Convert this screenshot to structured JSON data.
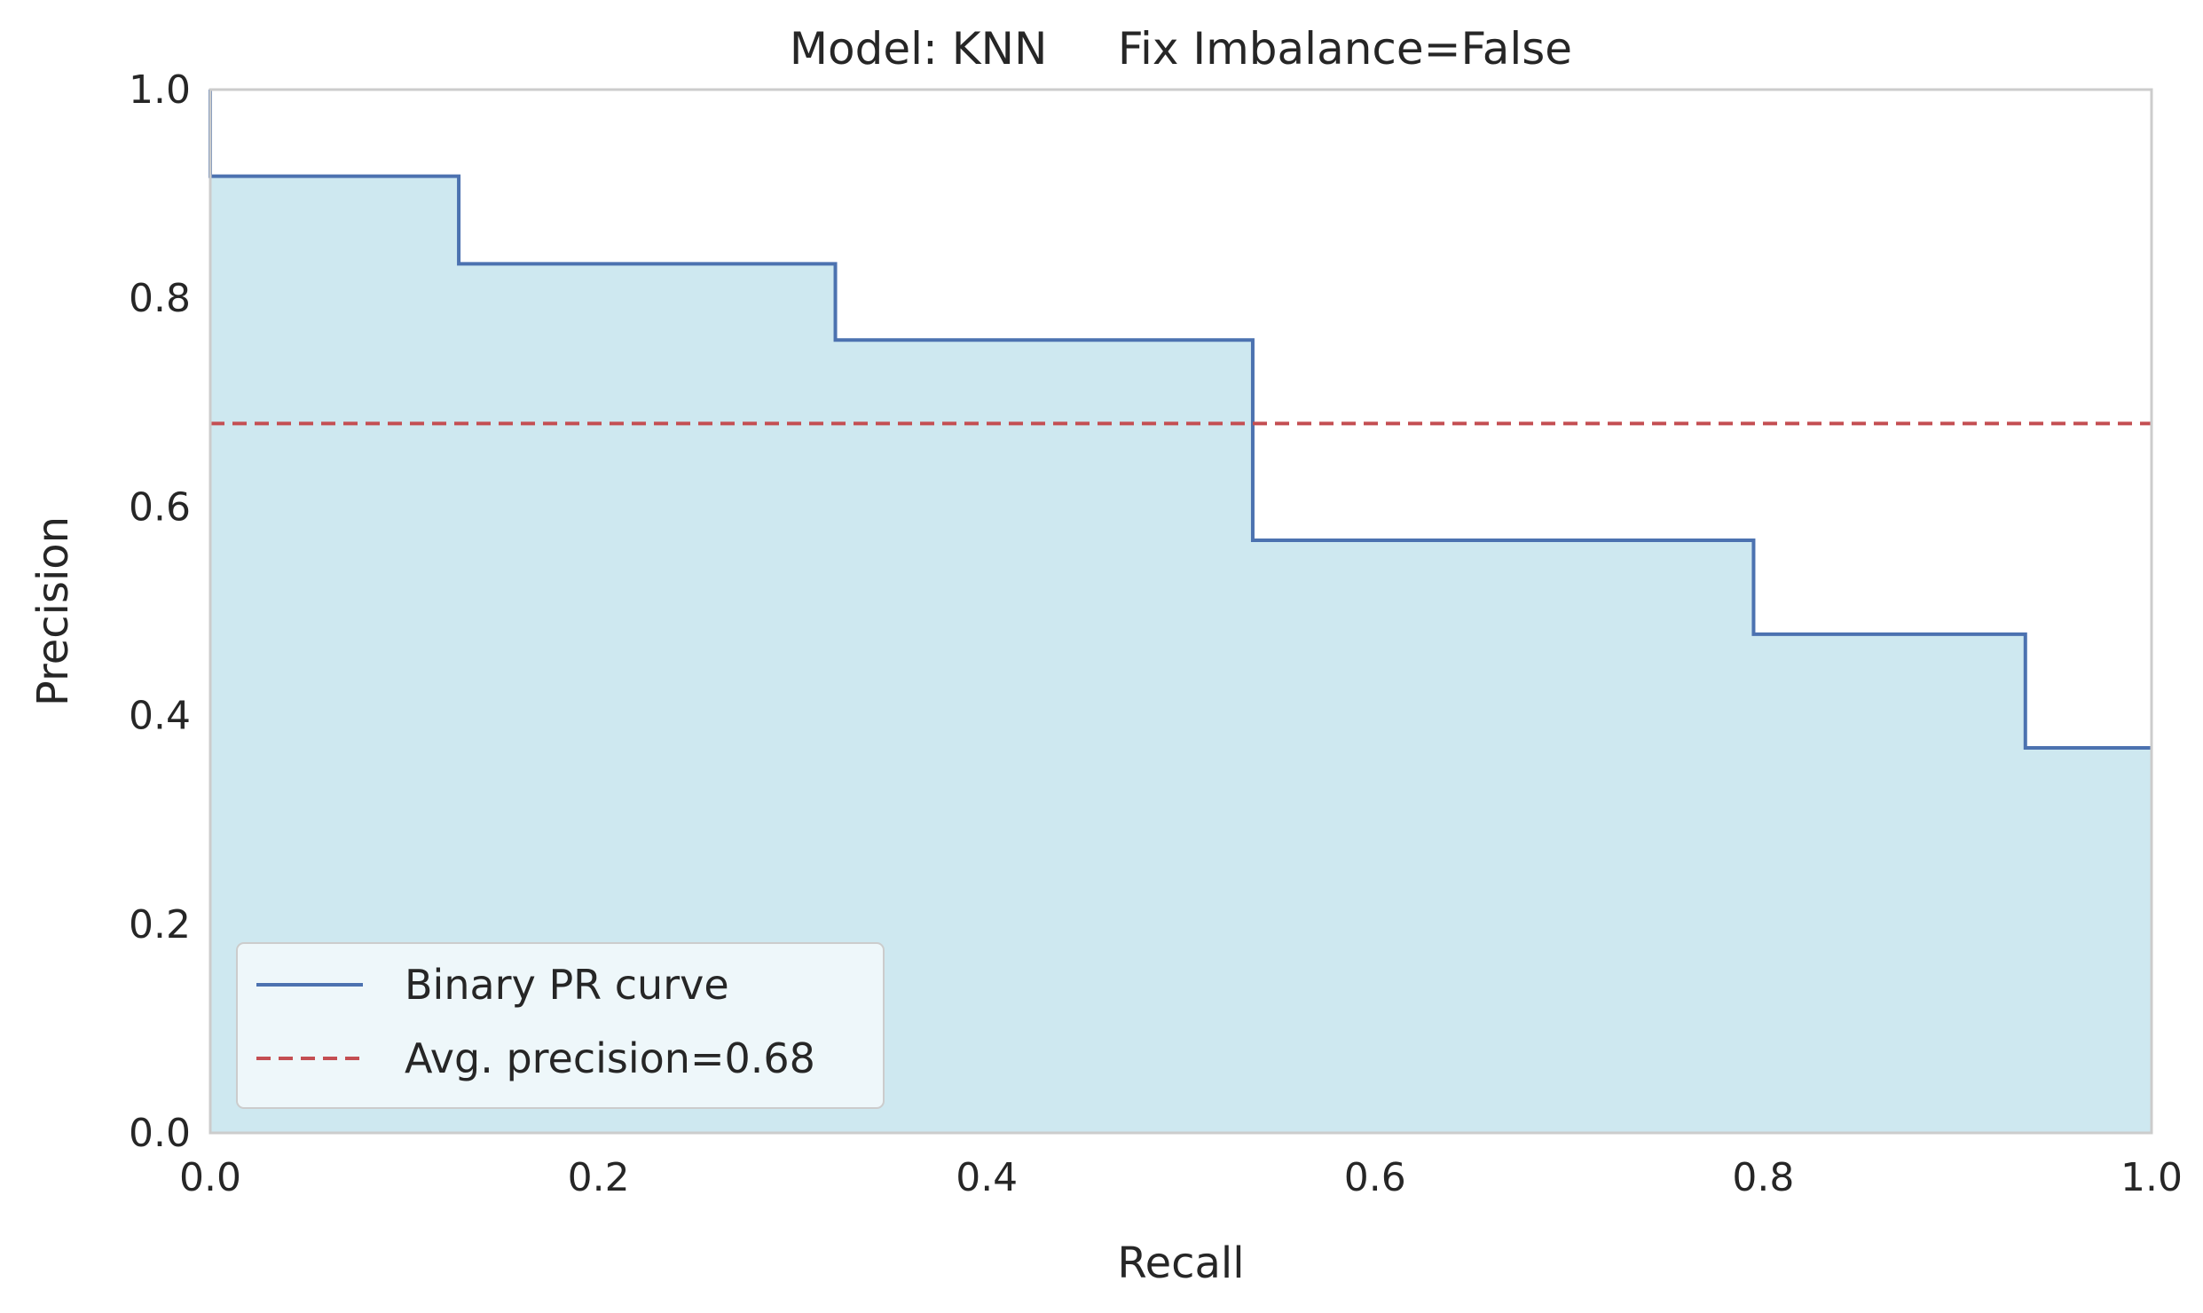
{
  "chart_data": {
    "type": "line",
    "title": "Model: KNN     Fix Imbalance=False",
    "xlabel": "Recall",
    "ylabel": "Precision",
    "xlim": [
      0.0,
      1.0
    ],
    "ylim": [
      0.0,
      1.0
    ],
    "xticks": [
      "0.0",
      "0.2",
      "0.4",
      "0.6",
      "0.8",
      "1.0"
    ],
    "yticks": [
      "0.0",
      "0.2",
      "0.4",
      "0.6",
      "0.8",
      "1.0"
    ],
    "grid": false,
    "legend_position": "lower-left",
    "series": [
      {
        "name": "Binary PR curve",
        "style": "step",
        "color": "#4c72b0",
        "fill_color": "#add8e6",
        "x": [
          0.0,
          0.0,
          0.128,
          0.322,
          0.537,
          0.795,
          0.935,
          1.0
        ],
        "y": [
          1.0,
          0.917,
          0.833,
          0.76,
          0.568,
          0.478,
          0.369,
          0.369
        ]
      },
      {
        "name": "Avg. precision=0.68",
        "style": "dashed-hline",
        "color": "#c44e52",
        "value": 0.68
      }
    ]
  }
}
